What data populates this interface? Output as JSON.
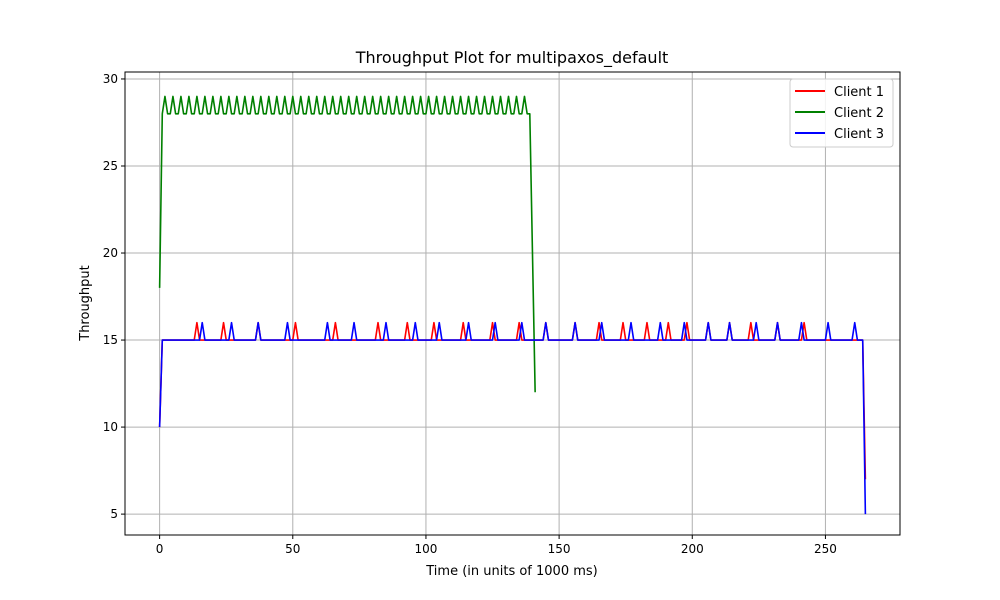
{
  "chart_data": {
    "type": "line",
    "title": "Throughput Plot for multipaxos_default",
    "xlabel": "Time (in units of 1000 ms)",
    "ylabel": "Throughput",
    "xlim": [
      -13,
      278
    ],
    "ylim": [
      3.8,
      30.4
    ],
    "xticks": [
      0,
      50,
      100,
      150,
      200,
      250
    ],
    "yticks": [
      5,
      10,
      15,
      20,
      25,
      30
    ],
    "grid": true,
    "legend_position": "top-right",
    "series": [
      {
        "name": "Client 1",
        "color": "#ff0000",
        "base": 15,
        "start": [
          [
            0,
            10
          ],
          [
            1,
            15
          ]
        ],
        "spike_x": [
          14,
          24,
          37,
          51,
          66,
          82,
          93,
          103,
          114,
          125,
          135,
          145,
          156,
          165,
          174,
          183,
          191,
          198,
          206,
          214,
          222,
          232,
          242
        ],
        "spike_value": 16,
        "end": [
          [
            264,
            15
          ],
          [
            265,
            7
          ]
        ]
      },
      {
        "name": "Client 2",
        "color": "#008000",
        "x_start": 0,
        "start": [
          [
            0,
            18
          ],
          [
            1,
            28
          ]
        ],
        "osc_from": 1,
        "osc_to": 138,
        "osc_low": 28,
        "osc_high": 29,
        "osc_period": 3,
        "end": [
          [
            139,
            28
          ],
          [
            140,
            20
          ],
          [
            141,
            12
          ]
        ]
      },
      {
        "name": "Client 3",
        "color": "#0000ff",
        "base": 15,
        "start": [
          [
            0,
            10
          ],
          [
            1,
            15
          ]
        ],
        "spike_x": [
          16,
          27,
          37,
          48,
          63,
          73,
          85,
          96,
          105,
          116,
          126,
          136,
          145,
          156,
          166,
          177,
          188,
          197,
          206,
          214,
          224,
          232,
          241,
          251,
          261
        ],
        "spike_value": 16,
        "end": [
          [
            264,
            15
          ],
          [
            265,
            5
          ]
        ]
      }
    ]
  }
}
